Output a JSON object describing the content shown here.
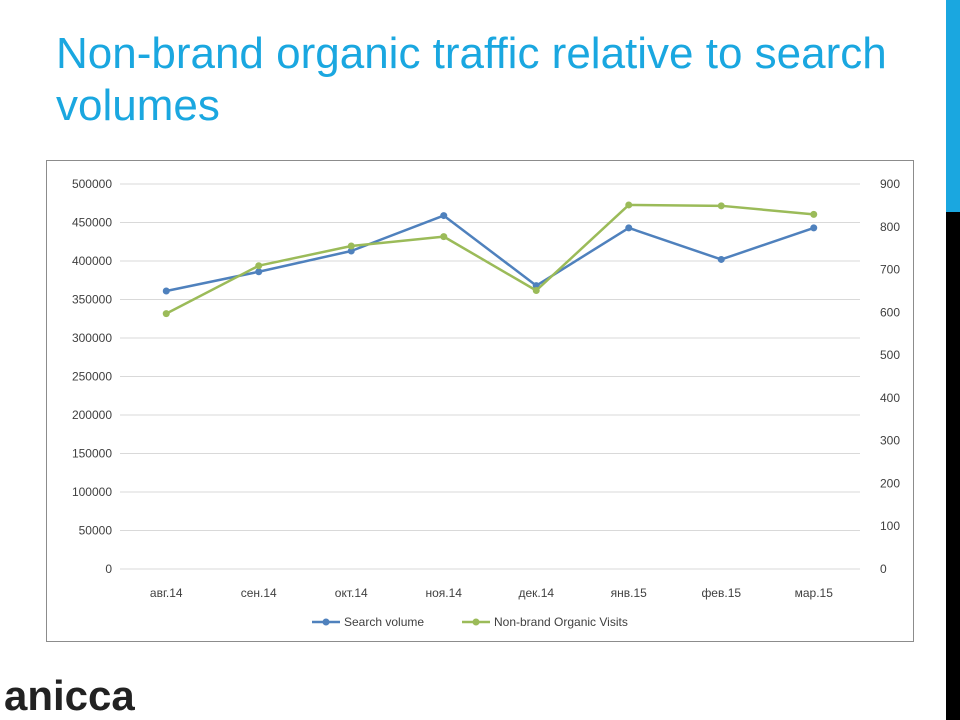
{
  "slide": {
    "title": "Non-brand organic traffic relative to search volumes",
    "logo_text": "anicca",
    "colors": {
      "title": "#1aa7e0",
      "accent_bar_top": "#1aa7e0",
      "accent_bar_bottom": "#000000"
    }
  },
  "chart_data": {
    "type": "line",
    "categories": [
      "авг.14",
      "сен.14",
      "окт.14",
      "ноя.14",
      "дек.14",
      "янв.15",
      "фев.15",
      "мар.15"
    ],
    "series": [
      {
        "name": "Search volume",
        "axis": "left",
        "color": "#4f81bd",
        "values": [
          361000,
          386000,
          413000,
          459000,
          368000,
          443000,
          402000,
          443000
        ]
      },
      {
        "name": "Non-brand Organic Visits",
        "axis": "right",
        "color": "#9bbb59",
        "values": [
          597,
          709,
          755,
          777,
          651,
          851,
          849,
          829
        ]
      }
    ],
    "y_left": {
      "min": 0,
      "max": 500000,
      "ticks": [
        "0",
        "50000",
        "100000",
        "150000",
        "200000",
        "250000",
        "300000",
        "350000",
        "400000",
        "450000",
        "500000"
      ]
    },
    "y_right": {
      "min": 0,
      "max": 900,
      "ticks": [
        "0",
        "100",
        "200",
        "300",
        "400",
        "500",
        "600",
        "700",
        "800",
        "900"
      ]
    },
    "grid": true,
    "legend_position": "bottom"
  }
}
